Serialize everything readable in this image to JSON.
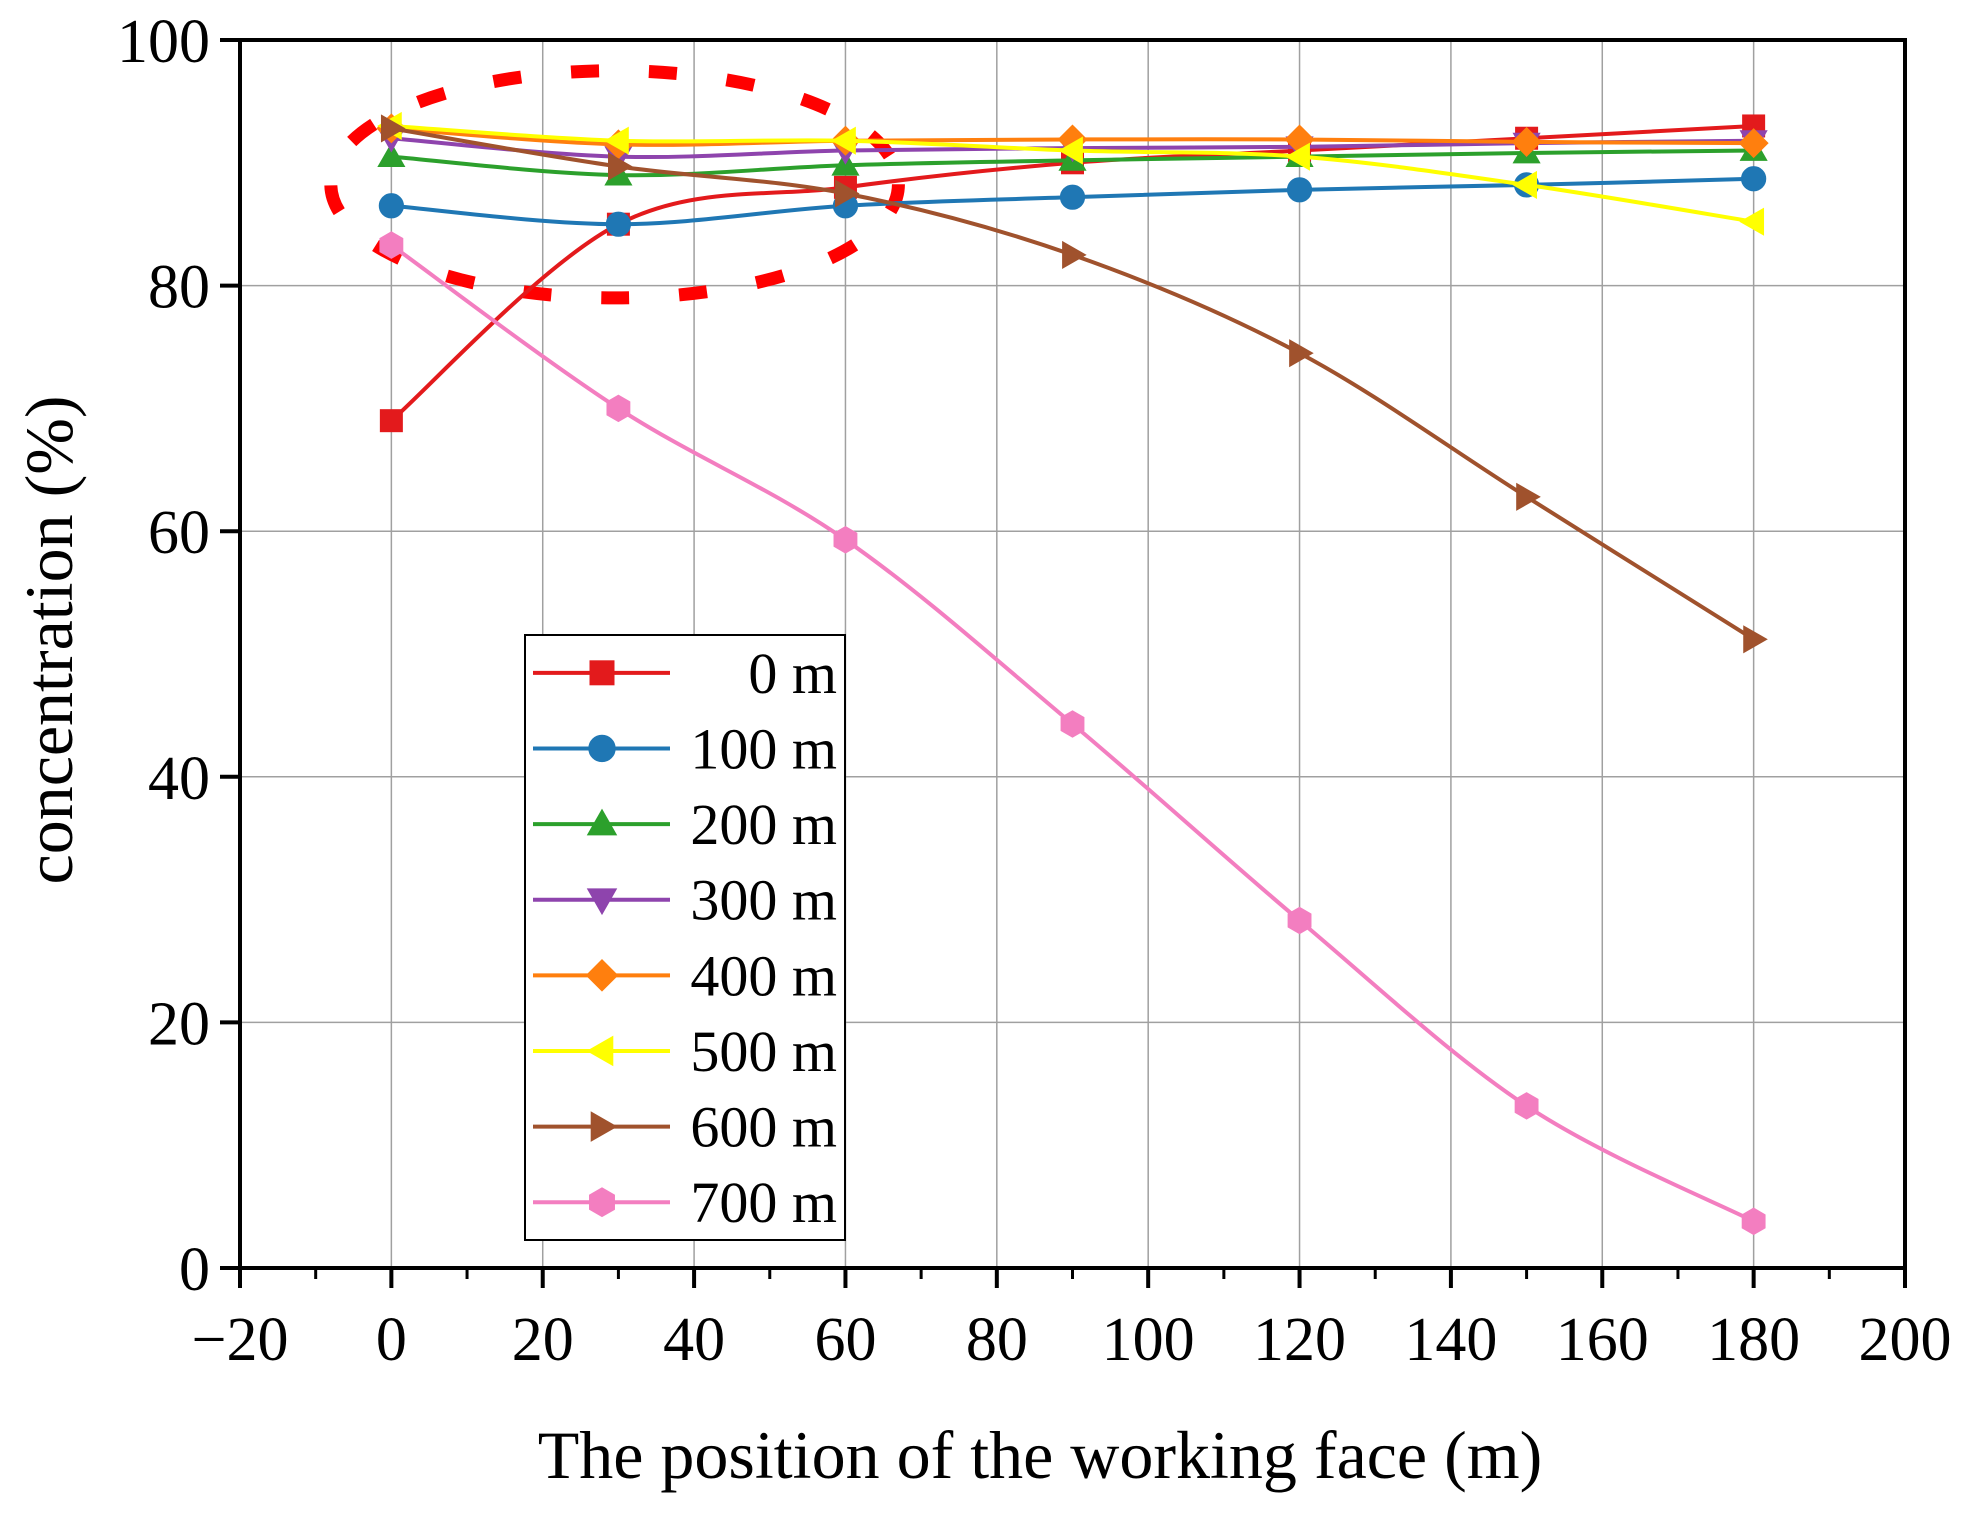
{
  "chart_data": {
    "type": "line",
    "title": "",
    "xlabel": "The position of the working face (m)",
    "ylabel": "concentration (%)",
    "xlim": [
      -20,
      200
    ],
    "ylim": [
      0,
      100
    ],
    "x_ticks": [
      -20,
      0,
      20,
      40,
      60,
      80,
      100,
      120,
      140,
      160,
      180,
      200
    ],
    "x_tick_labels": [
      "−20",
      "0",
      "20",
      "40",
      "60",
      "80",
      "100",
      "120",
      "140",
      "160",
      "180",
      "200"
    ],
    "y_ticks": [
      0,
      20,
      40,
      60,
      80,
      100
    ],
    "y_tick_labels": [
      "0",
      "20",
      "40",
      "60",
      "80",
      "100"
    ],
    "grid": true,
    "legend_position": "lower-left",
    "x": [
      0,
      30,
      60,
      90,
      120,
      150,
      180
    ],
    "series": [
      {
        "name": "0 m",
        "color": "#e31a1c",
        "marker": "square",
        "values": [
          69.0,
          85.0,
          88.0,
          90.0,
          91.0,
          92.0,
          93.0
        ]
      },
      {
        "name": "100 m",
        "color": "#1f77b4",
        "marker": "circle",
        "values": [
          86.5,
          85.0,
          86.5,
          87.2,
          87.8,
          88.2,
          88.7
        ]
      },
      {
        "name": "200 m",
        "color": "#2ca02c",
        "marker": "triangle-up",
        "values": [
          90.5,
          89.0,
          89.8,
          90.2,
          90.5,
          90.8,
          91.0
        ]
      },
      {
        "name": "300 m",
        "color": "#8e44ad",
        "marker": "triangle-down",
        "values": [
          92.0,
          90.5,
          91.0,
          91.2,
          91.3,
          91.6,
          91.8
        ]
      },
      {
        "name": "400 m",
        "color": "#ff7f0e",
        "marker": "diamond",
        "values": [
          92.8,
          91.5,
          91.8,
          91.9,
          91.9,
          91.7,
          91.6
        ]
      },
      {
        "name": "500 m",
        "color": "#ffff00",
        "marker": "triangle-left",
        "values": [
          93.0,
          91.8,
          91.8,
          91.0,
          90.5,
          88.2,
          85.2
        ]
      },
      {
        "name": "600 m",
        "color": "#a0522d",
        "marker": "triangle-right",
        "values": [
          92.8,
          89.7,
          87.5,
          82.5,
          74.5,
          62.8,
          51.2
        ]
      },
      {
        "name": "700 m",
        "color": "#f37ec0",
        "marker": "hexagon",
        "values": [
          83.3,
          70.0,
          59.3,
          44.3,
          28.3,
          13.2,
          3.8
        ]
      }
    ],
    "annotations": [
      {
        "type": "dashed-ellipse",
        "color": "#ff0000",
        "x_range": [
          -8,
          67
        ],
        "y_range": [
          79,
          97.5
        ]
      }
    ]
  }
}
